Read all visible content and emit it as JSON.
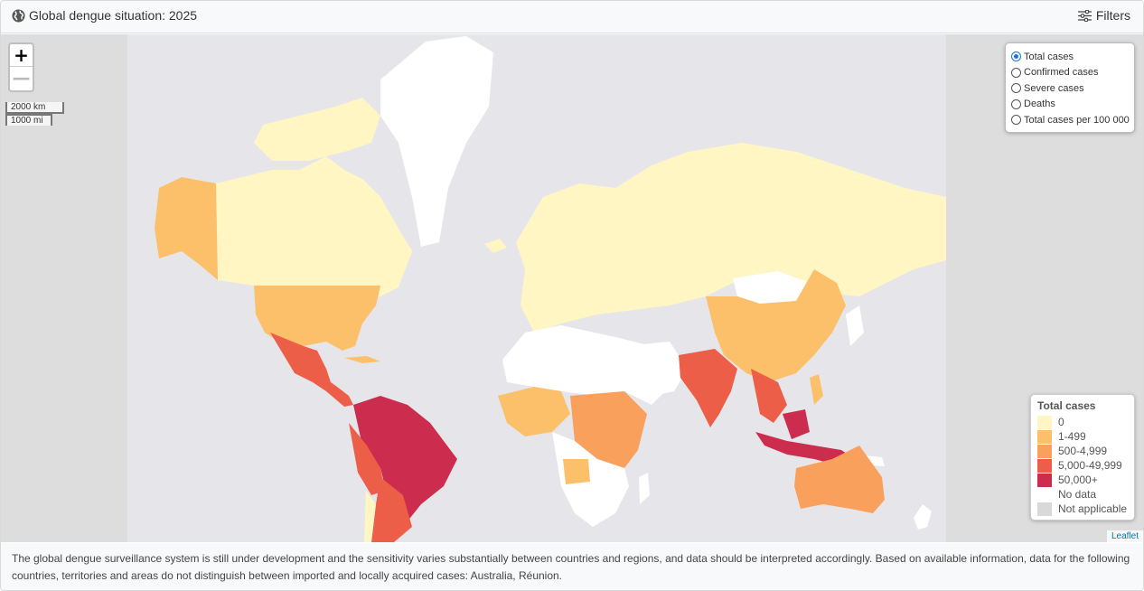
{
  "header": {
    "title": "Global dengue situation: 2025",
    "filters_label": "Filters"
  },
  "zoom": {
    "in_label": "+",
    "out_label": "—"
  },
  "scale": {
    "km": "2000 km",
    "mi": "1000 mi"
  },
  "metric_options": [
    {
      "label": "Total cases",
      "selected": true
    },
    {
      "label": "Confirmed cases",
      "selected": false
    },
    {
      "label": "Severe cases",
      "selected": false
    },
    {
      "label": "Deaths",
      "selected": false
    },
    {
      "label": "Total cases per 100 000",
      "selected": false
    }
  ],
  "legend": {
    "title": "Total cases",
    "items": [
      {
        "label": "0",
        "color": "#fff6c4"
      },
      {
        "label": "1-499",
        "color": "#fcc06a"
      },
      {
        "label": "500-4,999",
        "color": "#f9a05c"
      },
      {
        "label": "5,000-49,999",
        "color": "#ec5e48"
      },
      {
        "label": "50,000+",
        "color": "#cc2c4e"
      },
      {
        "label": "No data",
        "color": "#ffffff"
      },
      {
        "label": "Not applicable",
        "color": "#d9d9d9"
      }
    ]
  },
  "colors": {
    "ocean": "#e6e6ea",
    "outside": "#dddddd"
  },
  "attribution": "Leaflet",
  "footer": {
    "text": "The global dengue surveillance system is still under development and the sensitivity varies substantially between countries and regions, and data should be interpreted accordingly. Based on available information, data for the following countries, territories and areas do not distinguish between imported and locally acquired cases: Australia, Réunion."
  }
}
